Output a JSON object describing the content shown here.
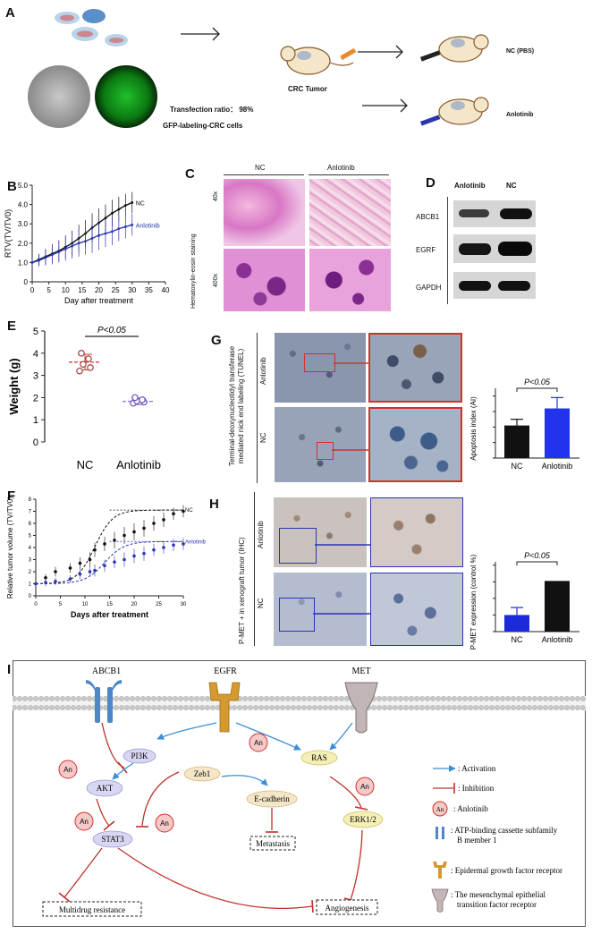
{
  "panels": {
    "A": "A",
    "B": "B",
    "C": "C",
    "D": "D",
    "E": "E",
    "F": "F",
    "G": "G",
    "H": "H",
    "I": "I"
  },
  "colors": {
    "nc": "#111111",
    "anlotinib": "#2b35b0",
    "inhibit": "#c0302a",
    "activate": "#3a8fd6",
    "accent_red": "#d3312b"
  },
  "panel_a": {
    "transfection_ratio": "Transfection ratio： 98%",
    "gfp_label": "GFP-labeling-CRC cells",
    "tumor_label": "CRC Tumor",
    "nc_label": "NC (PBS)",
    "anlotinib_label": "Anlotinib"
  },
  "panel_c": {
    "col_nc": "NC",
    "col_anlotinib": "Anlotinib",
    "stain": "Hematoxylin-eosin staining",
    "mag1": "40x",
    "mag2": "400x"
  },
  "panel_d": {
    "col_anlotinib": "Anlotinib",
    "col_nc": "NC",
    "rows": [
      "ABCB1",
      "EGRF",
      "GAPDH"
    ]
  },
  "panel_g": {
    "side_label": "Terminal-deoxynucleotidyl transferase mediated nick end labeling (TUNEL)",
    "row1": "Anlotinib",
    "row2": "NC"
  },
  "panel_h": {
    "side_label": "P-MET + in xenograft tumor (IHC)",
    "row1": "Anlotinib",
    "row2": "NC"
  },
  "chart_data": [
    {
      "panel": "B",
      "type": "line",
      "ylabel": "RTV(TV/TV0)",
      "xlabel": "Day after treatment",
      "xlim": [
        0,
        40
      ],
      "ylim": [
        0,
        5
      ],
      "xticks": [
        0,
        5,
        10,
        15,
        20,
        25,
        30,
        35,
        40
      ],
      "yticks": [
        0,
        1,
        2,
        3,
        4,
        5
      ],
      "tick_labels_y": [
        "0",
        "1.0",
        "2.0",
        "3.0",
        "4.0",
        "5.0"
      ],
      "series": [
        {
          "name": "NC",
          "x": [
            0,
            2,
            4,
            6,
            8,
            10,
            12,
            14,
            16,
            18,
            20,
            22,
            24,
            26,
            28,
            30
          ],
          "values": [
            1.0,
            1.15,
            1.3,
            1.45,
            1.6,
            1.8,
            2.0,
            2.25,
            2.5,
            2.8,
            3.05,
            3.3,
            3.55,
            3.75,
            3.95,
            4.1
          ],
          "err": [
            0.2,
            0.3,
            0.4,
            0.5,
            0.55,
            0.6,
            0.65,
            0.7,
            0.7,
            0.75,
            0.75,
            0.7,
            0.7,
            0.65,
            0.6,
            0.55
          ]
        },
        {
          "name": "Anlotinib",
          "x": [
            0,
            2,
            4,
            6,
            8,
            10,
            12,
            14,
            16,
            18,
            20,
            22,
            24,
            26,
            28,
            30
          ],
          "values": [
            1.0,
            1.1,
            1.25,
            1.4,
            1.55,
            1.7,
            1.85,
            2.0,
            2.1,
            2.25,
            2.4,
            2.5,
            2.6,
            2.75,
            2.85,
            2.95
          ],
          "err": [
            0.2,
            0.3,
            0.4,
            0.5,
            0.55,
            0.6,
            0.65,
            0.7,
            0.7,
            0.75,
            0.75,
            0.7,
            0.7,
            0.65,
            0.6,
            0.55
          ]
        }
      ]
    },
    {
      "panel": "E",
      "type": "scatter",
      "ylabel": "Weight (g)",
      "categories": [
        "NC",
        "Anlotinib"
      ],
      "ylim": [
        0,
        5
      ],
      "yticks": [
        0,
        1,
        2,
        3,
        4,
        5
      ],
      "annotation": "P<0.05",
      "series": [
        {
          "name": "NC",
          "values": [
            3.2,
            3.35,
            3.5,
            3.75,
            4.0
          ],
          "mean": 3.6,
          "sd": 0.35
        },
        {
          "name": "Anlotinib",
          "values": [
            1.75,
            1.8,
            1.85,
            1.9,
            2.0
          ],
          "mean": 1.83,
          "sd": 0.15
        }
      ]
    },
    {
      "panel": "F",
      "type": "line",
      "ylabel": "Relative tumor volume (TV/TV0)",
      "xlabel": "Days after treatment",
      "xlim": [
        0,
        30
      ],
      "ylim": [
        0,
        8
      ],
      "xticks": [
        0,
        5,
        10,
        15,
        20,
        25,
        30
      ],
      "yticks": [
        0,
        1,
        2,
        3,
        4,
        5,
        6,
        7,
        8
      ],
      "series": [
        {
          "name": "NC",
          "x": [
            0,
            2,
            4,
            7,
            9,
            11,
            12,
            14,
            16,
            18,
            20,
            22,
            24,
            26,
            28,
            30
          ],
          "values": [
            1.0,
            1.5,
            2.0,
            2.3,
            2.7,
            3.0,
            3.8,
            4.3,
            4.6,
            5.0,
            5.3,
            5.6,
            6.0,
            6.3,
            6.8,
            7.0
          ],
          "err": [
            0.2,
            0.3,
            0.4,
            0.4,
            0.5,
            0.6,
            0.6,
            0.6,
            0.7,
            0.7,
            0.7,
            0.7,
            0.6,
            0.6,
            0.5,
            0.5
          ],
          "fit_top": 7.1
        },
        {
          "name": "Anlotinib",
          "x": [
            0,
            2,
            4,
            7,
            9,
            11,
            12,
            14,
            16,
            18,
            20,
            22,
            24,
            26,
            28,
            30
          ],
          "values": [
            1.0,
            1.1,
            1.2,
            1.4,
            1.8,
            2.0,
            2.1,
            2.5,
            2.8,
            3.0,
            3.3,
            3.5,
            3.8,
            4.0,
            4.2,
            4.3
          ],
          "err": [
            0.2,
            0.3,
            0.3,
            0.3,
            0.4,
            0.4,
            0.5,
            0.5,
            0.5,
            0.6,
            0.6,
            0.6,
            0.5,
            0.5,
            0.5,
            0.5
          ],
          "fit_top": 4.5
        }
      ]
    },
    {
      "panel": "G",
      "type": "bar",
      "ylabel": "Apoptosis index (AI)",
      "categories": [
        "NC",
        "Anlotinib"
      ],
      "values": [
        21,
        32
      ],
      "err": [
        4,
        7
      ],
      "ylim": [
        0,
        45
      ],
      "annotation": "P<0.05"
    },
    {
      "panel": "H",
      "type": "bar",
      "ylabel": "P-MET expression (control %)",
      "categories": [
        "NC",
        "Anlotinib"
      ],
      "values": [
        1.0,
        3.05
      ],
      "err": [
        0.45,
        0
      ],
      "ylim": [
        0,
        4.2
      ],
      "annotation": "P<0.05"
    }
  ],
  "pathway": {
    "receptors": {
      "abcb1": "ABCB1",
      "egfr": "EGFR",
      "met": "MET"
    },
    "nodes": {
      "pi3k": "PI3K",
      "akt": "AKT",
      "stat3": "STAT3",
      "zeb1": "Zeb1",
      "ecad": "E-cadherin",
      "ras": "RAS",
      "erk": "ERK1/2",
      "metastasis": "Metastasis",
      "mdr": "Multidrug  resistance",
      "angio": "Angiogenesis"
    },
    "an": "An",
    "legend": {
      "activation": ": Activation",
      "inhibition": ": Inhibition",
      "anlotinib": ": Anlotinib",
      "abcb1": ": ATP-binding cassette subfamily B member 1",
      "egfr": ": Epidermal growth factor receptor",
      "met": ": The mesenchymal epithelial transition factor receptor"
    }
  }
}
